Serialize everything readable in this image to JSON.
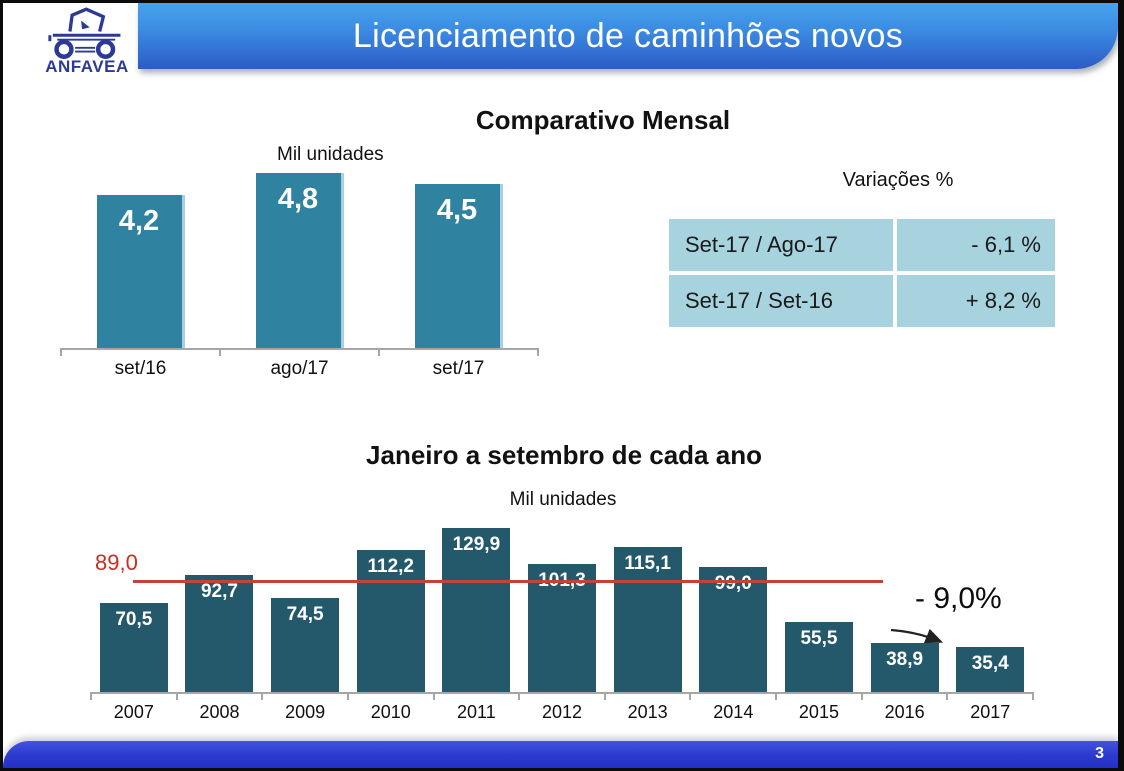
{
  "slide": {
    "title": "Licenciamento de caminhões novos",
    "logo_text": "ANFAVEA",
    "page_number": "3"
  },
  "variations": {
    "title": "Variações %",
    "rows": [
      {
        "label": "Set-17 / Ago-17",
        "value": "- 6,1 %"
      },
      {
        "label": "Set-17 / Set-16",
        "value": "+ 8,2 %"
      }
    ]
  },
  "chart_data": [
    {
      "type": "bar",
      "title": "Comparativo Mensal",
      "ylabel": "Mil unidades",
      "categories": [
        "set/16",
        "ago/17",
        "set/17"
      ],
      "values": [
        4.2,
        4.8,
        4.5
      ],
      "value_labels": [
        "4,2",
        "4,8",
        "4,5"
      ],
      "bar_color": "#2F82A0",
      "ylim": [
        0,
        5
      ],
      "grid": false,
      "legend": false
    },
    {
      "type": "bar",
      "title": "Janeiro a setembro de cada ano",
      "ylabel": "Mil unidades",
      "categories": [
        "2007",
        "2008",
        "2009",
        "2010",
        "2011",
        "2012",
        "2013",
        "2014",
        "2015",
        "2016",
        "2017"
      ],
      "values": [
        70.5,
        92.7,
        74.5,
        112.2,
        129.9,
        101.3,
        115.1,
        99.0,
        55.5,
        38.9,
        35.4
      ],
      "value_labels": [
        "70,5",
        "92,7",
        "74,5",
        "112,2",
        "129,9",
        "101,3",
        "115,1",
        "99,0",
        "55,5",
        "38,9",
        "35,4"
      ],
      "bar_color": "#24596B",
      "ylim": [
        0,
        140
      ],
      "grid": false,
      "legend": false,
      "reference_line": {
        "value": 89.0,
        "label": "89,0",
        "color": "#C4423A"
      },
      "annotation": {
        "label": "- 9,0%",
        "target": "2017"
      }
    }
  ],
  "colors": {
    "header_gradient_top": "#47A3EE",
    "header_gradient_bottom": "#2C5CC5",
    "footer_blue": "#2C3ACD",
    "table_cell_blue": "#A7D3DF",
    "logo_blue": "#2B3A96",
    "axis_gray": "#A6A6A6",
    "monthly_bar_teal": "#2F82A0",
    "annual_bar_teal": "#24596B",
    "reference_red": "#C4423A"
  }
}
